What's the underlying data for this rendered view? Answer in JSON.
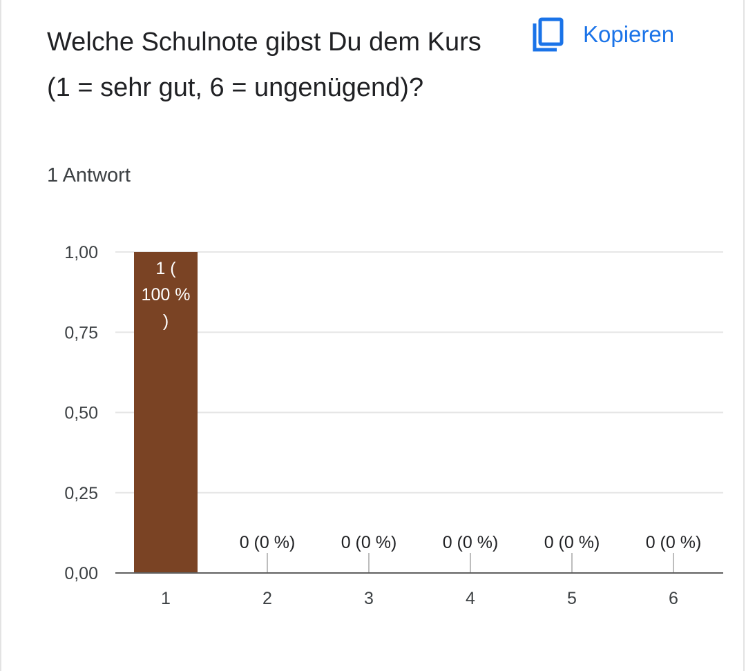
{
  "question": {
    "title": "Welche Schulnote gibst Du dem Kurs (1 = sehr gut, 6 = ungenügend)?",
    "response_count": "1 Antwort"
  },
  "actions": {
    "copy_label": "Kopieren",
    "copy_icon": "copy-icon"
  },
  "colors": {
    "bar": "#7a4324",
    "accent": "#1a73e8"
  },
  "chart_data": {
    "type": "bar",
    "categories": [
      "1",
      "2",
      "3",
      "4",
      "5",
      "6"
    ],
    "values": [
      1,
      0,
      0,
      0,
      0,
      0
    ],
    "data_labels": [
      [
        "1 (",
        "100 %",
        ")"
      ],
      [
        "0 (0 %)"
      ],
      [
        "0 (0 %)"
      ],
      [
        "0 (0 %)"
      ],
      [
        "0 (0 %)"
      ],
      [
        "0 (0 %)"
      ]
    ],
    "ylim": [
      0,
      1
    ],
    "yticks": [
      0,
      0.25,
      0.5,
      0.75,
      1
    ],
    "ytick_labels": [
      "0,00",
      "0,25",
      "0,50",
      "0,75",
      "1,00"
    ],
    "grid": true,
    "legend": "none"
  }
}
